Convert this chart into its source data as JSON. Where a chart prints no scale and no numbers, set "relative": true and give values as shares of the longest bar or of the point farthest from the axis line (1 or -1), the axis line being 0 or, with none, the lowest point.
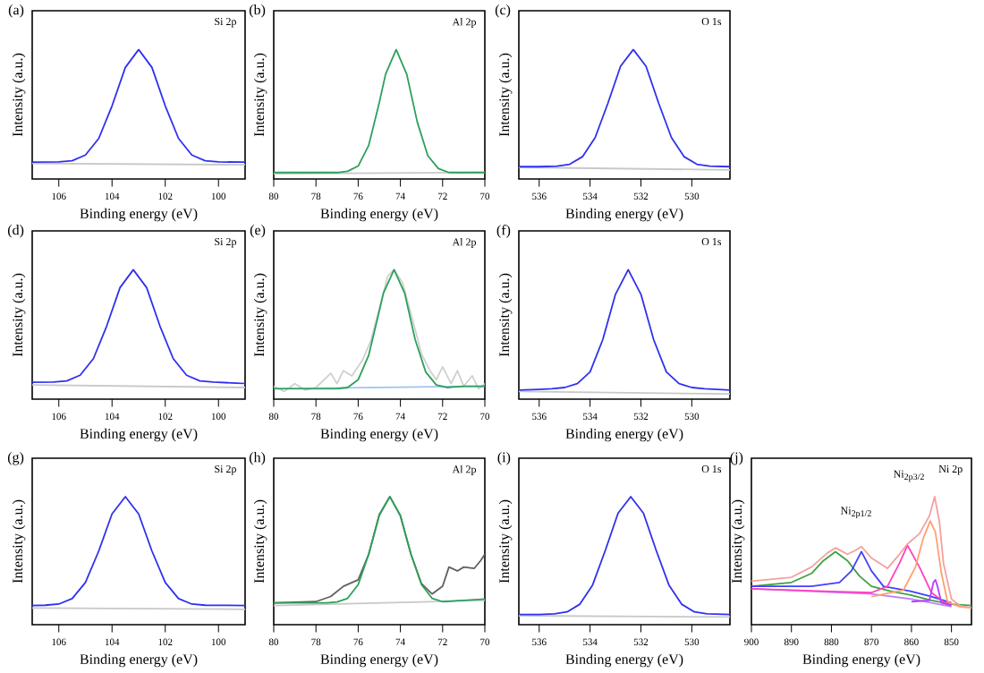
{
  "chart_data": [
    {
      "type": "line",
      "title": "(a)",
      "annotations": [
        "Si 2p"
      ],
      "xlabel": "Binding energy (eV)",
      "ylabel": "Intensity (a.u.)",
      "relative": true,
      "tick_labels": "x",
      "xlim": [
        107,
        99
      ],
      "xticks": [
        106,
        104,
        102,
        100
      ],
      "x": [
        107,
        106,
        105.5,
        105,
        104.5,
        104,
        103.5,
        103,
        102.5,
        102,
        101.5,
        101,
        100.5,
        100,
        99
      ],
      "series": [
        {
          "color": "#c8c8c8",
          "x": [
            107,
            99
          ],
          "values": [
            0.12,
            0.11
          ]
        },
        {
          "color": "#3030f0",
          "values": [
            0.13,
            0.132,
            0.141,
            0.185,
            0.313,
            0.565,
            0.862,
            1,
            0.862,
            0.565,
            0.313,
            0.185,
            0.141,
            0.132,
            0.13
          ]
        }
      ]
    },
    {
      "type": "line",
      "title": "(b)",
      "annotations": [
        "Al 2p"
      ],
      "xlabel": "Binding energy (eV)",
      "ylabel": "Intensity (a.u.)",
      "relative": true,
      "tick_labels": "x",
      "xlim": [
        80,
        70
      ],
      "xticks": [
        80,
        78,
        76,
        74,
        72,
        70
      ],
      "x": [
        80,
        79,
        78,
        77,
        76.5,
        76,
        75.5,
        75,
        74.7,
        74.2,
        73.7,
        73.2,
        72.7,
        72.2,
        71.7,
        71,
        70
      ],
      "series": [
        {
          "color": "#c8c8c8",
          "x": [
            80,
            70
          ],
          "values": [
            0.04,
            0.05
          ]
        },
        {
          "color": "#2ca05a",
          "values": [
            0.05,
            0.05,
            0.05,
            0.05,
            0.06,
            0.1,
            0.26,
            0.59,
            0.81,
            1,
            0.81,
            0.44,
            0.18,
            0.08,
            0.05,
            0.05,
            0.05
          ]
        }
      ]
    },
    {
      "type": "line",
      "title": "(c)",
      "annotations": [
        "O 1s"
      ],
      "xlabel": "Binding energy (eV)",
      "ylabel": "Intensity (a.u.)",
      "relative": true,
      "tick_labels": "x",
      "xlim": [
        536.8,
        528.5
      ],
      "xticks": [
        536,
        534,
        532,
        530
      ],
      "x": [
        536.8,
        536,
        535.3,
        534.8,
        534.3,
        533.8,
        533.3,
        532.8,
        532.3,
        531.8,
        531.3,
        530.8,
        530.3,
        529.8,
        529.3,
        528.5
      ],
      "series": [
        {
          "color": "#c8c8c8",
          "x": [
            536.8,
            528.5
          ],
          "values": [
            0.09,
            0.07
          ]
        },
        {
          "color": "#3030f0",
          "values": [
            0.095,
            0.095,
            0.099,
            0.114,
            0.172,
            0.32,
            0.584,
            0.871,
            1,
            0.871,
            0.584,
            0.32,
            0.172,
            0.114,
            0.099,
            0.095
          ]
        }
      ]
    },
    {
      "type": "line",
      "title": "(d)",
      "annotations": [
        "Si 2p"
      ],
      "xlabel": "Binding energy (eV)",
      "ylabel": "Intensity (a.u.)",
      "relative": true,
      "tick_labels": "x",
      "xlim": [
        107,
        99
      ],
      "xticks": [
        106,
        104,
        102,
        100
      ],
      "x": [
        107,
        106.2,
        105.7,
        105.2,
        104.7,
        104.2,
        103.7,
        103.2,
        102.7,
        102.2,
        101.7,
        101.2,
        100.7,
        100.2,
        99
      ],
      "series": [
        {
          "color": "#c8c8c8",
          "x": [
            107,
            99
          ],
          "values": [
            0.11,
            0.09
          ]
        },
        {
          "color": "#3030f0",
          "values": [
            0.13,
            0.132,
            0.141,
            0.185,
            0.313,
            0.565,
            0.862,
            1,
            0.862,
            0.565,
            0.313,
            0.185,
            0.141,
            0.132,
            0.12
          ]
        }
      ]
    },
    {
      "type": "line",
      "title": "(e)",
      "annotations": [
        "Al 2p"
      ],
      "xlabel": "Binding energy (eV)",
      "ylabel": "Intensity (a.u.)",
      "relative": true,
      "tick_labels": "x",
      "xlim": [
        80,
        70
      ],
      "xticks": [
        80,
        78,
        76,
        74,
        72,
        70
      ],
      "x": [
        80,
        79,
        78,
        77,
        76.5,
        76,
        75.5,
        75,
        74.8,
        74.3,
        73.8,
        73.3,
        72.8,
        72.3,
        71.8,
        71,
        70
      ],
      "series": [
        {
          "color": "#d0d0d0",
          "x": [
            80,
            79.5,
            79,
            78.5,
            78,
            77.3,
            77,
            76.7,
            76.3,
            75.8,
            75.4,
            75,
            74.6,
            74.3,
            73.9,
            73.4,
            73,
            72.6,
            72.3,
            72,
            71.6,
            71.3,
            71,
            70.6,
            70.3,
            70
          ],
          "values": [
            0.1,
            0.06,
            0.12,
            0.07,
            0.09,
            0.2,
            0.12,
            0.22,
            0.18,
            0.3,
            0.45,
            0.7,
            0.95,
            1,
            0.9,
            0.6,
            0.35,
            0.22,
            0.15,
            0.25,
            0.12,
            0.22,
            0.1,
            0.18,
            0.08,
            0.12
          ]
        },
        {
          "color": "#9ec5f0",
          "x": [
            80,
            70
          ],
          "values": [
            0.08,
            0.1
          ]
        },
        {
          "color": "#2ca05a",
          "values": [
            0.08,
            0.08,
            0.08,
            0.08,
            0.09,
            0.15,
            0.34,
            0.68,
            0.82,
            1,
            0.82,
            0.46,
            0.21,
            0.11,
            0.09,
            0.1,
            0.1
          ]
        }
      ]
    },
    {
      "type": "line",
      "title": "(f)",
      "annotations": [
        "O 1s"
      ],
      "xlabel": "Binding energy (eV)",
      "ylabel": "Intensity (a.u.)",
      "relative": true,
      "tick_labels": "x",
      "xlim": [
        536.8,
        528.5
      ],
      "xticks": [
        536,
        534,
        532,
        530
      ],
      "x": [
        536.8,
        536,
        535.5,
        535,
        534.5,
        534,
        533.5,
        533,
        532.5,
        532,
        531.5,
        531,
        530.5,
        530,
        529.5,
        528.5
      ],
      "series": [
        {
          "color": "#c8c8c8",
          "x": [
            536.8,
            528.5
          ],
          "values": [
            0.06,
            0.04
          ]
        },
        {
          "color": "#3030f0",
          "values": [
            0.07,
            0.075,
            0.08,
            0.09,
            0.12,
            0.21,
            0.46,
            0.81,
            1,
            0.81,
            0.46,
            0.21,
            0.12,
            0.09,
            0.08,
            0.07
          ]
        }
      ]
    },
    {
      "type": "line",
      "title": "(g)",
      "annotations": [
        "Si 2p"
      ],
      "xlabel": "Binding energy (eV)",
      "ylabel": "Intensity (a.u.)",
      "relative": true,
      "tick_labels": "x",
      "xlim": [
        107,
        99
      ],
      "xticks": [
        106,
        104,
        102,
        100
      ],
      "x": [
        107,
        106.5,
        106,
        105.5,
        105,
        104.5,
        104,
        103.5,
        103,
        102.5,
        102,
        101.5,
        101,
        100.5,
        99
      ],
      "series": [
        {
          "color": "#c8c8c8",
          "x": [
            107,
            99
          ],
          "values": [
            0.13,
            0.12
          ]
        },
        {
          "color": "#3030f0",
          "values": [
            0.15,
            0.152,
            0.161,
            0.204,
            0.329,
            0.575,
            0.865,
            1,
            0.865,
            0.575,
            0.329,
            0.204,
            0.161,
            0.152,
            0.15
          ]
        }
      ]
    },
    {
      "type": "line",
      "title": "(h)",
      "annotations": [
        "Al 2p"
      ],
      "xlabel": "Binding energy (eV)",
      "ylabel": "Intensity (a.u.)",
      "relative": true,
      "tick_labels": "x",
      "xlim": [
        80,
        70
      ],
      "xticks": [
        80,
        78,
        76,
        74,
        72,
        70
      ],
      "x": [
        80,
        79,
        78,
        77.5,
        77,
        76.5,
        76,
        75.5,
        75,
        74.5,
        74,
        73.5,
        73,
        72.5,
        72,
        71,
        70
      ],
      "series": [
        {
          "color": "#606060",
          "x": [
            80,
            78,
            77.3,
            76.7,
            76,
            75.5,
            75,
            74.5,
            74,
            73.5,
            73,
            72.5,
            72,
            71.7,
            71.3,
            71,
            70.5,
            70.2,
            70
          ],
          "values": [
            0.17,
            0.18,
            0.22,
            0.3,
            0.35,
            0.55,
            0.86,
            1,
            0.85,
            0.55,
            0.32,
            0.24,
            0.3,
            0.45,
            0.42,
            0.45,
            0.44,
            0.5,
            0.55
          ]
        },
        {
          "color": "#c8c8c8",
          "x": [
            80,
            70
          ],
          "values": [
            0.15,
            0.19
          ]
        },
        {
          "color": "#2ca05a",
          "values": [
            0.17,
            0.17,
            0.17,
            0.17,
            0.177,
            0.206,
            0.313,
            0.55,
            0.853,
            1,
            0.853,
            0.55,
            0.313,
            0.206,
            0.18,
            0.19,
            0.2
          ]
        }
      ]
    },
    {
      "type": "line",
      "title": "(i)",
      "annotations": [
        "O 1s"
      ],
      "xlabel": "Binding energy (eV)",
      "ylabel": "Intensity (a.u.)",
      "relative": true,
      "tick_labels": "x",
      "xlim": [
        536.8,
        528.5
      ],
      "xticks": [
        536,
        534,
        532,
        530
      ],
      "x": [
        536.8,
        536,
        535.4,
        534.9,
        534.4,
        533.9,
        533.4,
        532.9,
        532.4,
        531.9,
        531.4,
        530.9,
        530.4,
        529.9,
        529.4,
        528.5
      ],
      "series": [
        {
          "color": "#c8c8c8",
          "x": [
            536.8,
            528.5
          ],
          "values": [
            0.07,
            0.06
          ]
        },
        {
          "color": "#3030f0",
          "values": [
            0.08,
            0.08,
            0.085,
            0.1,
            0.16,
            0.31,
            0.58,
            0.87,
            1,
            0.87,
            0.58,
            0.31,
            0.16,
            0.1,
            0.085,
            0.08
          ]
        }
      ]
    },
    {
      "type": "line",
      "title": "(j)",
      "annotations": [
        "Ni 2p",
        "Ni$_{2p1/2}$",
        "Ni$_{2p3/2}$"
      ],
      "xlabel": "Binding energy (eV)",
      "ylabel": "Intensity (a.u.)",
      "relative": true,
      "tick_labels": "x",
      "xlim": [
        900,
        845
      ],
      "xticks": [
        900,
        890,
        880,
        870,
        860,
        850
      ],
      "series": [
        {
          "color": "#c080ff",
          "x": [
            900,
            870,
            860,
            850
          ],
          "values": [
            0.28,
            0.24,
            0.2,
            0.14
          ]
        },
        {
          "color": "#40a040",
          "x": [
            900,
            890,
            885,
            882,
            879,
            876,
            873,
            870,
            865,
            860,
            855,
            850,
            845
          ],
          "values": [
            0.3,
            0.33,
            0.4,
            0.5,
            0.57,
            0.5,
            0.38,
            0.3,
            0.26,
            0.23,
            0.19,
            0.16,
            0.15
          ]
        },
        {
          "color": "#4040ff",
          "x": [
            900,
            885,
            878,
            875,
            872.5,
            870,
            867,
            860,
            855,
            850
          ],
          "values": [
            0.3,
            0.3,
            0.33,
            0.42,
            0.57,
            0.42,
            0.3,
            0.26,
            0.22,
            0.17
          ]
        },
        {
          "color": "#ff40c0",
          "x": [
            900,
            880,
            870,
            866,
            863,
            861,
            858,
            855,
            852,
            850
          ],
          "values": [
            0.28,
            0.26,
            0.25,
            0.3,
            0.48,
            0.62,
            0.45,
            0.25,
            0.18,
            0.16
          ]
        },
        {
          "color": "#ffa070",
          "x": [
            870,
            862,
            859,
            857,
            855.3,
            854,
            852.5,
            851,
            848,
            845
          ],
          "values": [
            0.22,
            0.27,
            0.45,
            0.68,
            0.81,
            0.72,
            0.4,
            0.18,
            0.14,
            0.13
          ]
        },
        {
          "color": "#b040ff",
          "x": [
            860,
            855.5,
            854.5,
            854,
            853.5,
            852.5,
            850
          ],
          "values": [
            0.18,
            0.19,
            0.33,
            0.35,
            0.3,
            0.17,
            0.15
          ]
        },
        {
          "color": "#f4a0a0",
          "x": [
            900,
            890,
            885,
            881,
            879,
            876,
            874,
            872.5,
            870,
            866,
            863,
            861,
            858,
            855.5,
            854.2,
            853,
            852,
            850,
            848,
            845
          ],
          "values": [
            0.34,
            0.37,
            0.45,
            0.56,
            0.6,
            0.55,
            0.58,
            0.61,
            0.52,
            0.44,
            0.55,
            0.63,
            0.71,
            0.85,
            1,
            0.8,
            0.48,
            0.2,
            0.15,
            0.13
          ]
        }
      ]
    }
  ]
}
